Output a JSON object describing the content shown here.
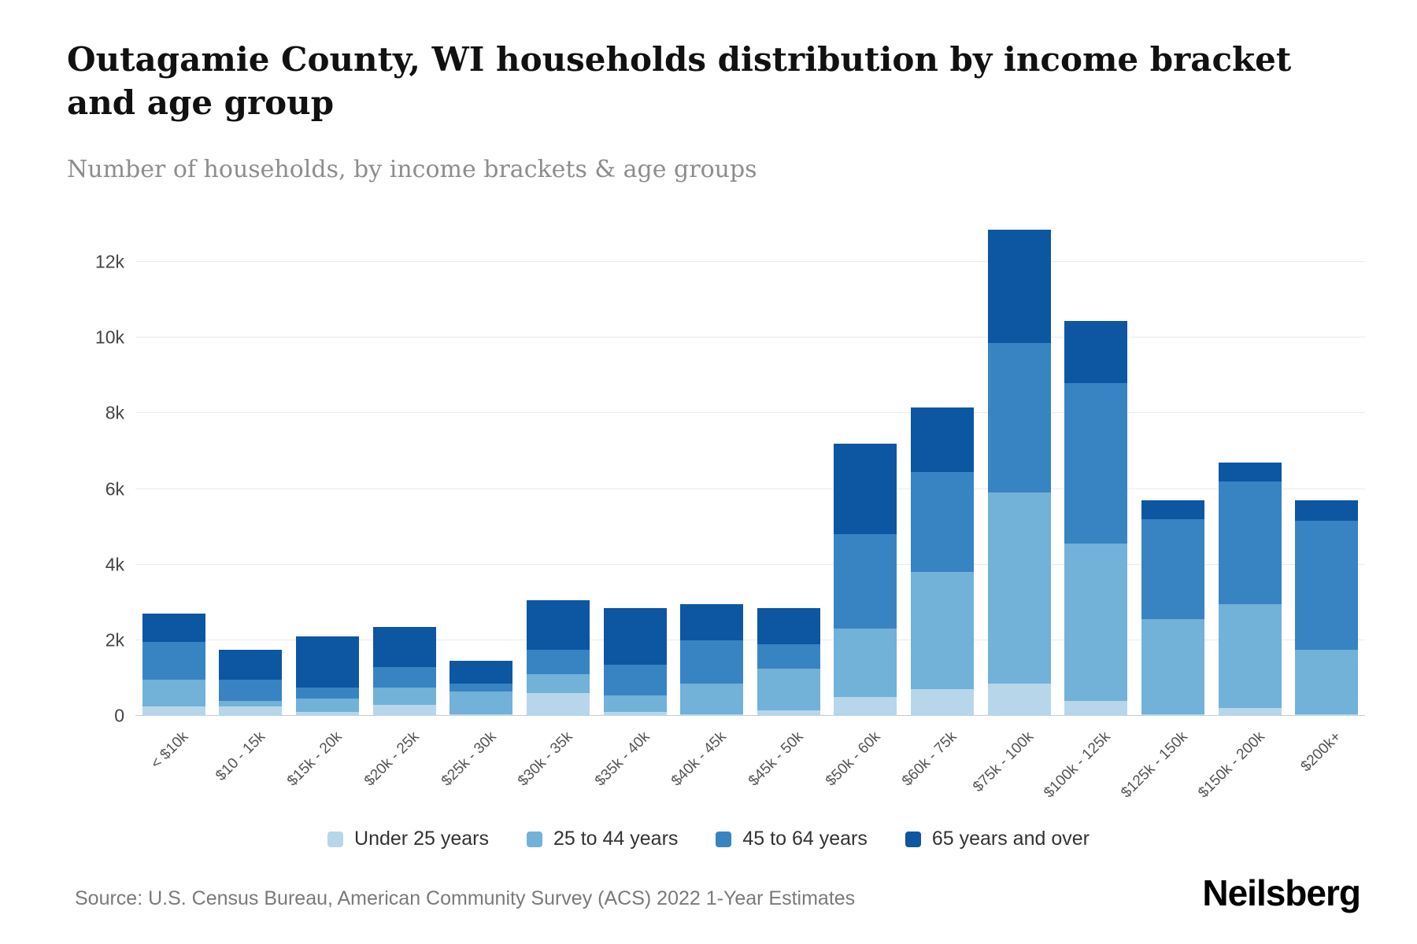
{
  "header": {
    "title": "Outagamie County, WI households distribution by income bracket and age group",
    "subtitle": "Number of households, by income brackets & age groups"
  },
  "footer": {
    "source": "Source: U.S. Census Bureau, American Community Survey (ACS) 2022 1-Year Estimates",
    "brand": "Neilsberg"
  },
  "chart_data": {
    "type": "bar",
    "stacked": true,
    "title": "Outagamie County, WI households distribution by income bracket and age group",
    "subtitle": "Number of households, by income brackets & age groups",
    "xlabel": "",
    "ylabel": "",
    "grid": true,
    "legend_position": "bottom",
    "ylim": [
      0,
      13000
    ],
    "yticks": [
      {
        "value": 0,
        "label": "0"
      },
      {
        "value": 2000,
        "label": "2k"
      },
      {
        "value": 4000,
        "label": "4k"
      },
      {
        "value": 6000,
        "label": "6k"
      },
      {
        "value": 8000,
        "label": "8k"
      },
      {
        "value": 10000,
        "label": "10k"
      },
      {
        "value": 12000,
        "label": "12k"
      }
    ],
    "categories": [
      "< $10k",
      "$10 - 15k",
      "$15k - 20k",
      "$20k - 25k",
      "$25k - 30k",
      "$30k - 35k",
      "$35k - 40k",
      "$40k - 45k",
      "$45k - 50k",
      "$50k - 60k",
      "$60k - 75k",
      "$75k - 100k",
      "$100k - 125k",
      "$125k - 150k",
      "$150k - 200k",
      "$200k+"
    ],
    "series": [
      {
        "name": "Under 25 years",
        "color": "#b8d6ea",
        "values": [
          250,
          250,
          100,
          300,
          50,
          600,
          100,
          50,
          150,
          500,
          700,
          850,
          400,
          50,
          200,
          50
        ]
      },
      {
        "name": "25 to 44 years",
        "color": "#72b1d8",
        "values": [
          700,
          150,
          350,
          450,
          600,
          500,
          450,
          800,
          1100,
          1800,
          3100,
          5050,
          4150,
          2500,
          2750,
          1700
        ]
      },
      {
        "name": "45 to 64 years",
        "color": "#3884c2",
        "values": [
          1000,
          550,
          300,
          550,
          200,
          650,
          800,
          1150,
          650,
          2500,
          2650,
          3950,
          4250,
          2650,
          3250,
          3400
        ]
      },
      {
        "name": "65 years and over",
        "color": "#0c56a2",
        "values": [
          750,
          800,
          1350,
          1050,
          600,
          1300,
          1500,
          950,
          950,
          2400,
          1700,
          3000,
          1650,
          500,
          500,
          550
        ]
      }
    ]
  }
}
